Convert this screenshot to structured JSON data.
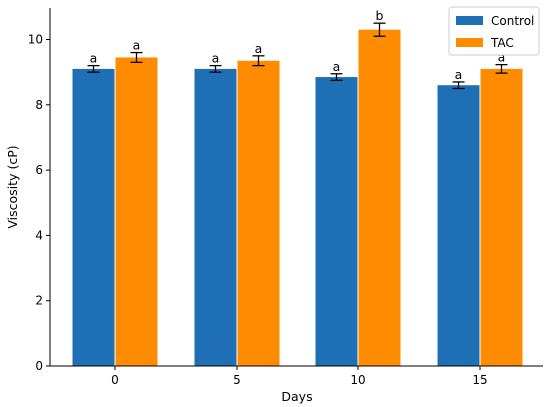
{
  "chart_data": {
    "type": "bar",
    "title": "",
    "xlabel": "Days",
    "ylabel": "Viscosity (cP)",
    "categories": [
      "0",
      "5",
      "10",
      "15"
    ],
    "ylim": [
      0,
      11
    ],
    "yticks": [
      "0",
      "2",
      "4",
      "6",
      "8",
      "10"
    ],
    "grid": false,
    "legend_position": "top-right",
    "series": [
      {
        "name": "Control",
        "color": "#1f6fb5",
        "values": [
          9.1,
          9.1,
          8.85,
          8.6
        ],
        "errors": [
          0.1,
          0.1,
          0.1,
          0.1
        ],
        "significance": [
          "a",
          "a",
          "a",
          "a"
        ]
      },
      {
        "name": "TAC",
        "color": "#ff8c00",
        "values": [
          9.45,
          9.35,
          10.3,
          9.1
        ],
        "errors": [
          0.15,
          0.15,
          0.2,
          0.13
        ],
        "significance": [
          "a",
          "a",
          "b",
          "a"
        ]
      }
    ]
  }
}
